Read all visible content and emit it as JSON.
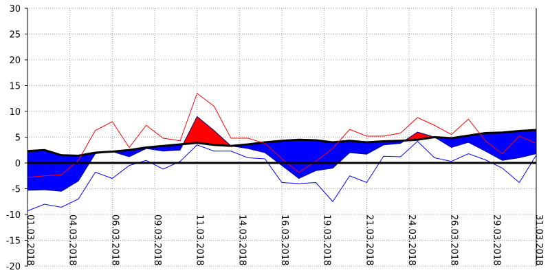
{
  "chart_data": {
    "type": "anomaly-band",
    "x": [
      1,
      2,
      3,
      4,
      5,
      6,
      7,
      8,
      9,
      10,
      11,
      12,
      13,
      14,
      15,
      16,
      17,
      18,
      19,
      20,
      21,
      22,
      23,
      24,
      25,
      26,
      27,
      28,
      29,
      30,
      31
    ],
    "xlim": [
      1,
      31
    ],
    "xticks": [
      {
        "value": 1,
        "label": "01.03.2018"
      },
      {
        "value": 3.5,
        "label": "04.03.2018"
      },
      {
        "value": 6,
        "label": "06.03.2018"
      },
      {
        "value": 8.5,
        "label": "09.03.2018"
      },
      {
        "value": 11,
        "label": "11.03.2018"
      },
      {
        "value": 13.5,
        "label": "14.03.2018"
      },
      {
        "value": 16,
        "label": "16.03.2018"
      },
      {
        "value": 18.5,
        "label": "19.03.2018"
      },
      {
        "value": 21,
        "label": "21.03.2018"
      },
      {
        "value": 23.5,
        "label": "24.03.2018"
      },
      {
        "value": 26,
        "label": "26.03.2018"
      },
      {
        "value": 28.5,
        "label": "29.03.2018"
      },
      {
        "value": 31,
        "label": "31.03.2018"
      }
    ],
    "ylim": [
      -20,
      30
    ],
    "yticks": [
      -20,
      -15,
      -10,
      -5,
      0,
      5,
      10,
      15,
      20,
      25,
      30
    ],
    "grid": true,
    "fill_above": "#ff0000",
    "fill_below": "#0000ff",
    "series": [
      {
        "role": "normal",
        "color": "#000000",
        "values": [
          2.3,
          2.5,
          1.5,
          1.4,
          2.0,
          2.2,
          2.5,
          3.0,
          3.3,
          3.6,
          3.9,
          3.5,
          3.3,
          3.6,
          4.0,
          4.3,
          4.5,
          4.4,
          4.0,
          4.3,
          4.0,
          4.2,
          4.3,
          4.5,
          5.0,
          4.8,
          5.3,
          5.8,
          5.9,
          6.2,
          6.4
        ]
      },
      {
        "role": "mean",
        "color": "#000080",
        "values": [
          -5.3,
          -5.2,
          -5.5,
          -3.5,
          1.8,
          2.2,
          1.2,
          2.8,
          2.3,
          2.5,
          9.0,
          6.3,
          3.3,
          2.8,
          2.0,
          -0.5,
          -3.0,
          -1.5,
          -1.0,
          2.0,
          1.7,
          3.5,
          3.8,
          6.0,
          5.0,
          3.0,
          4.0,
          2.3,
          0.5,
          1.0,
          1.8
        ]
      },
      {
        "role": "max",
        "color": "#ff0000",
        "values": [
          -2.8,
          -2.5,
          -2.3,
          0.5,
          6.3,
          8.0,
          3.0,
          7.3,
          4.8,
          4.3,
          13.5,
          11.0,
          4.8,
          4.8,
          3.8,
          0.8,
          -1.8,
          0.3,
          2.8,
          6.5,
          5.2,
          5.2,
          5.8,
          8.8,
          7.3,
          5.5,
          8.5,
          4.3,
          1.8,
          5.2,
          3.8
        ]
      },
      {
        "role": "min",
        "color": "#0000ff",
        "values": [
          -9.3,
          -8.0,
          -8.6,
          -7.0,
          -1.8,
          -3.0,
          -0.5,
          0.5,
          -1.2,
          0.3,
          3.5,
          2.3,
          2.3,
          1.0,
          0.8,
          -3.8,
          -4.0,
          -3.8,
          -7.5,
          -2.5,
          -3.8,
          1.3,
          1.2,
          4.2,
          1.0,
          0.3,
          1.8,
          0.6,
          -1.0,
          -3.8,
          1.5
        ]
      }
    ]
  }
}
